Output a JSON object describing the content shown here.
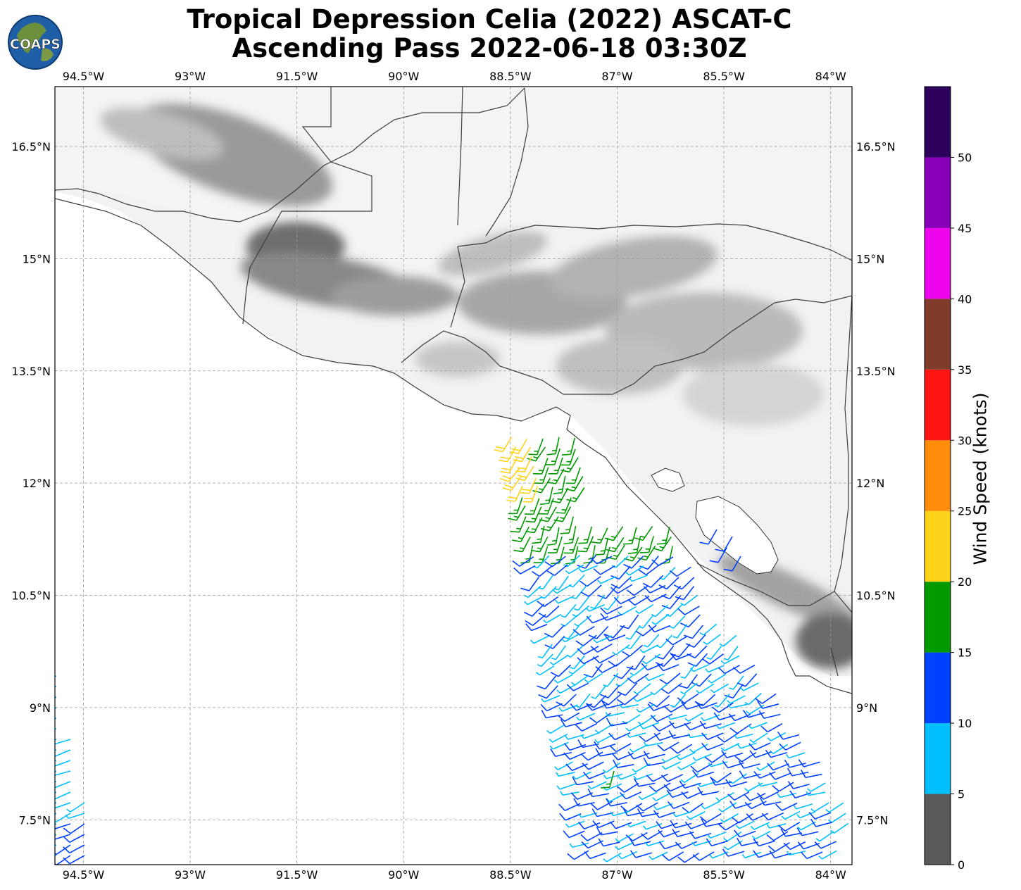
{
  "title": {
    "line1": "Tropical Depression Celia (2022) ASCAT-C",
    "line2": "Ascending Pass 2022-06-18 03:30Z"
  },
  "logo": {
    "text": "COAPS",
    "icon": "globe-logo-icon"
  },
  "map": {
    "lon_range": [
      -94.9,
      -83.7
    ],
    "lat_range": [
      6.9,
      17.3
    ],
    "lon_ticks": [
      {
        "value": -94.5,
        "label": "94.5°W"
      },
      {
        "value": -93.0,
        "label": "93°W"
      },
      {
        "value": -91.5,
        "label": "91.5°W"
      },
      {
        "value": -90.0,
        "label": "90°W"
      },
      {
        "value": -88.5,
        "label": "88.5°W"
      },
      {
        "value": -87.0,
        "label": "87°W"
      },
      {
        "value": -85.5,
        "label": "85.5°W"
      },
      {
        "value": -84.0,
        "label": "84°W"
      }
    ],
    "lat_ticks": [
      {
        "value": 16.5,
        "label": "16.5°N"
      },
      {
        "value": 15.0,
        "label": "15°N"
      },
      {
        "value": 13.5,
        "label": "13.5°N"
      },
      {
        "value": 12.0,
        "label": "12°N"
      },
      {
        "value": 10.5,
        "label": "10.5°N"
      },
      {
        "value": 9.0,
        "label": "9°N"
      },
      {
        "value": 7.5,
        "label": "7.5°N"
      }
    ],
    "gridlines": true,
    "land_shading": "grayscale terrain",
    "wind_barbs": "ASCAT-C wind barbs colored by speed"
  },
  "colorbar": {
    "title": "Wind Speed (knots)",
    "bins": [
      {
        "from": 0,
        "to": 5,
        "color": "#595959"
      },
      {
        "from": 5,
        "to": 10,
        "color": "#00bfff"
      },
      {
        "from": 10,
        "to": 15,
        "color": "#0040ff"
      },
      {
        "from": 15,
        "to": 20,
        "color": "#009900"
      },
      {
        "from": 20,
        "to": 25,
        "color": "#ffd21a"
      },
      {
        "from": 25,
        "to": 30,
        "color": "#ff8c0a"
      },
      {
        "from": 30,
        "to": 35,
        "color": "#ff1414"
      },
      {
        "from": 35,
        "to": 40,
        "color": "#7f3c2a"
      },
      {
        "from": 40,
        "to": 45,
        "color": "#ee05ee"
      },
      {
        "from": 45,
        "to": 50,
        "color": "#8700b8"
      },
      {
        "from": 50,
        "to": 55,
        "color": "#2d005e"
      }
    ],
    "tick_labels": [
      "0",
      "5",
      "10",
      "15",
      "20",
      "25",
      "30",
      "35",
      "40",
      "45",
      "50"
    ]
  }
}
